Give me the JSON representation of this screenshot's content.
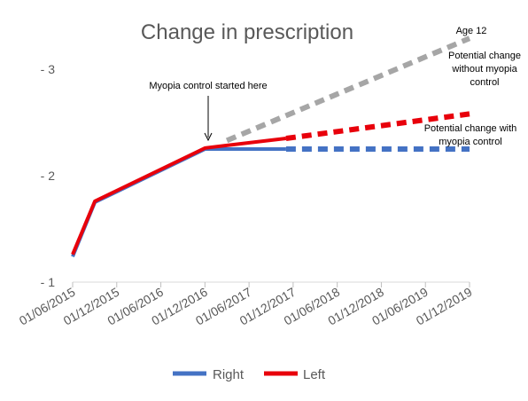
{
  "chart_data": {
    "type": "line",
    "title": "Change in prescription",
    "x_categories": [
      "01/06/2015",
      "01/12/2015",
      "01/06/2016",
      "01/12/2016",
      "01/06/2017",
      "01/12/2017",
      "01/06/2018",
      "01/12/2018",
      "01/06/2019",
      "01/12/2019"
    ],
    "y_ticks": [
      {
        "value": 1,
        "label": "- 1"
      },
      {
        "value": 2,
        "label": "- 2"
      },
      {
        "value": 3,
        "label": "- 3"
      }
    ],
    "ylim": [
      1,
      3.4
    ],
    "series": [
      {
        "name": "Right",
        "color": "#4472C4",
        "points": [
          {
            "x": "2015-06-01",
            "y": 1.24
          },
          {
            "x": "2015-09-01",
            "y": 1.75
          },
          {
            "x": "2016-12-01",
            "y": 2.25
          },
          {
            "x": "2017-11-01",
            "y": 2.25
          }
        ]
      },
      {
        "name": "Left",
        "color": "#E8000B",
        "points": [
          {
            "x": "2015-06-01",
            "y": 1.26
          },
          {
            "x": "2015-09-01",
            "y": 1.76
          },
          {
            "x": "2016-12-01",
            "y": 2.26
          },
          {
            "x": "2017-11-01",
            "y": 2.35
          }
        ]
      }
    ],
    "projections": [
      {
        "color": "#4472C4",
        "points": [
          {
            "x": "2017-11-01",
            "y": 2.25
          },
          {
            "x": "2019-12-01",
            "y": 2.25
          }
        ]
      },
      {
        "color": "#E8000B",
        "points": [
          {
            "x": "2017-11-01",
            "y": 2.35
          },
          {
            "x": "2019-12-01",
            "y": 2.58
          }
        ]
      },
      {
        "color": "#A6A6A6",
        "points": [
          {
            "x": "2017-03-01",
            "y": 2.33
          },
          {
            "x": "2019-12-01",
            "y": 3.29
          }
        ]
      }
    ],
    "annotations": {
      "myopia_control": "Myopia control started here",
      "age": "Age 12",
      "without_line1": "Potential change",
      "without_line2": "without myopia",
      "without_line3": "control",
      "with_line1": "Potential change with",
      "with_line2": "myopia control"
    },
    "legend": {
      "placement": "bottom",
      "items": [
        "Right",
        "Left"
      ]
    }
  }
}
